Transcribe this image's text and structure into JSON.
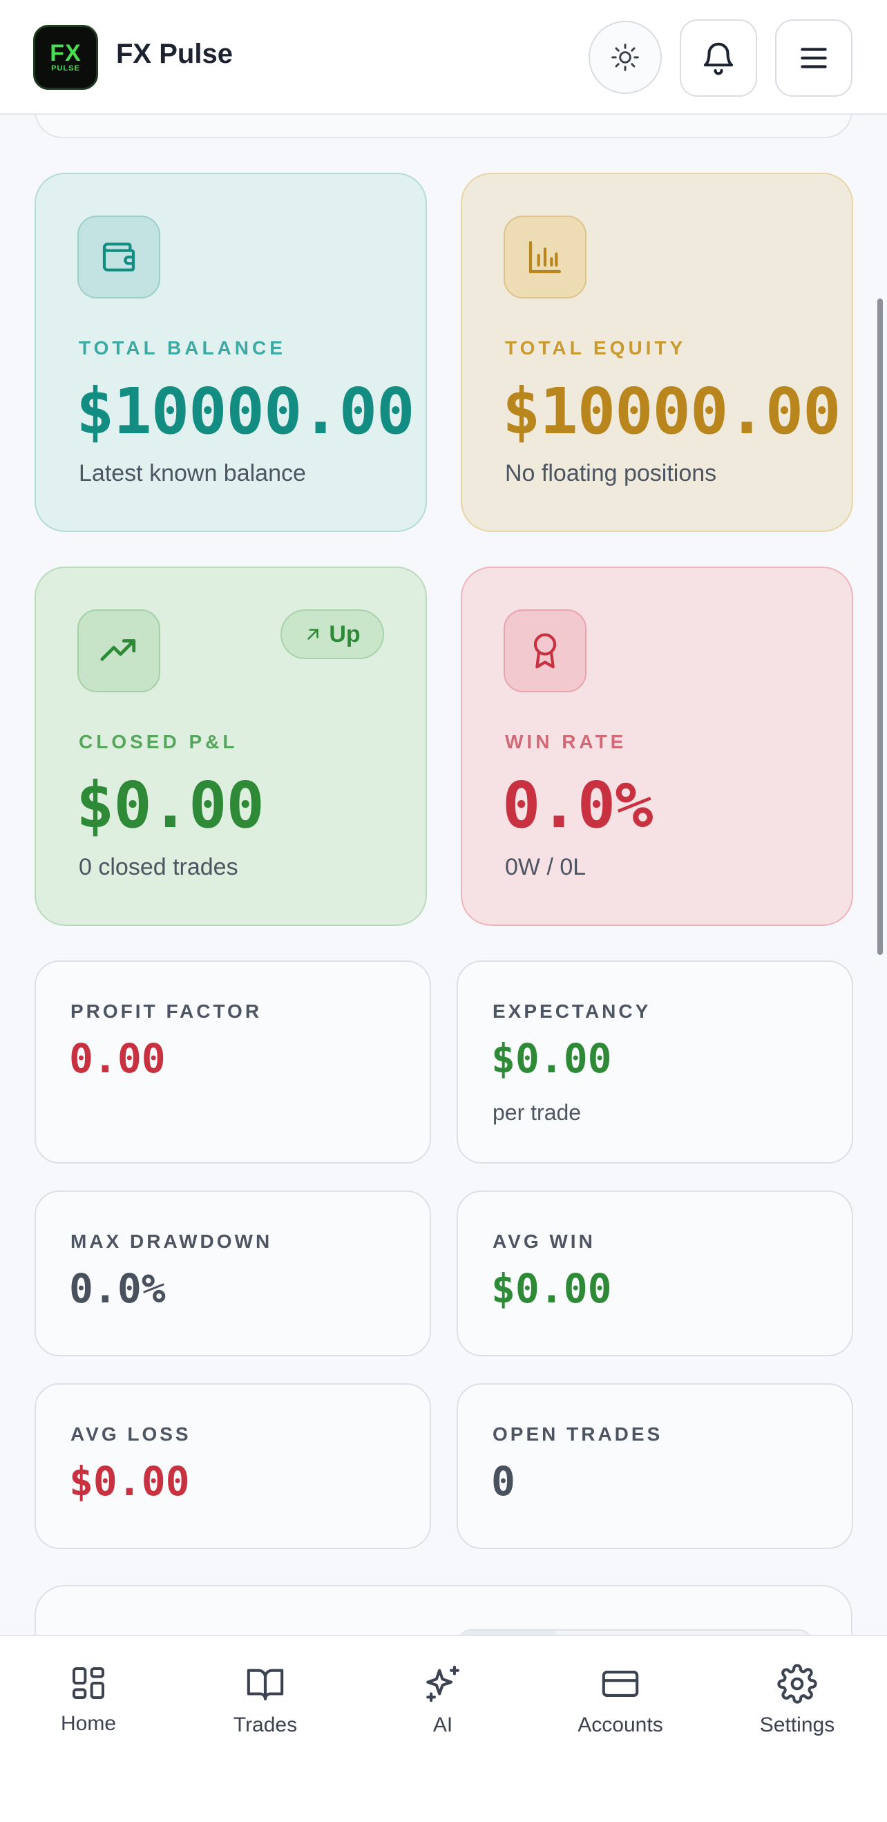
{
  "header": {
    "logo_text": "FX",
    "logo_sub": "PULSE",
    "title": "FX Pulse",
    "theme_icon": "sun-icon",
    "notification_icon": "bell-icon",
    "menu_icon": "hamburger-menu-icon"
  },
  "stats": {
    "balance": {
      "label": "TOTAL BALANCE",
      "value": "$10000.00",
      "sub": "Latest known balance",
      "icon": "wallet-icon"
    },
    "equity": {
      "label": "TOTAL EQUITY",
      "value": "$10000.00",
      "sub": "No floating positions",
      "icon": "bar-chart-icon"
    },
    "closed_pnl": {
      "label": "CLOSED P&L",
      "value": "$0.00",
      "sub": "0 closed trades",
      "icon": "trending-up-icon",
      "badge": "Up"
    },
    "win_rate": {
      "label": "WIN RATE",
      "value": "0.0%",
      "sub": "0W / 0L",
      "icon": "award-icon"
    }
  },
  "metrics": {
    "profit_factor": {
      "label": "PROFIT FACTOR",
      "value": "0.00"
    },
    "expectancy": {
      "label": "EXPECTANCY",
      "value": "$0.00",
      "sub": "per trade"
    },
    "max_drawdown": {
      "label": "MAX DRAWDOWN",
      "value": "0.0%"
    },
    "avg_win": {
      "label": "AVG WIN",
      "value": "$0.00"
    },
    "avg_loss": {
      "label": "AVG LOSS",
      "value": "$0.00"
    },
    "open_trades": {
      "label": "OPEN TRADES",
      "value": "0"
    }
  },
  "nav": {
    "items": [
      {
        "label": "Home",
        "icon": "grid-icon"
      },
      {
        "label": "Trades",
        "icon": "book-icon"
      },
      {
        "label": "AI",
        "icon": "sparkles-icon"
      },
      {
        "label": "Accounts",
        "icon": "card-icon"
      },
      {
        "label": "Settings",
        "icon": "gear-icon"
      }
    ]
  },
  "colors": {
    "teal": "#138c82",
    "gold": "#b8861c",
    "green": "#2f8a38",
    "red": "#c8313f"
  }
}
